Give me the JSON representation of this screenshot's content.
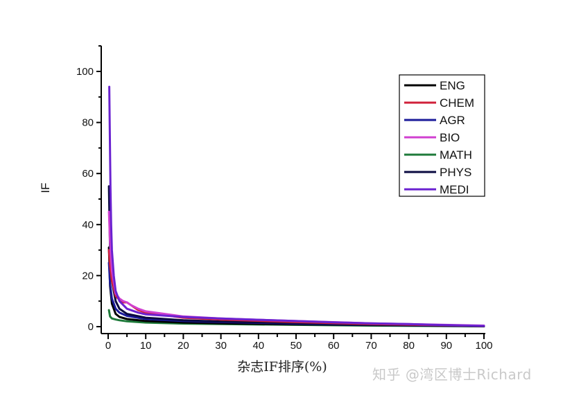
{
  "chart_data": {
    "type": "line",
    "title": "",
    "xlabel": "杂志IF排序(%)",
    "ylabel": "IF",
    "xlim": [
      -2,
      100
    ],
    "ylim": [
      -2,
      110
    ],
    "x_ticks": [
      0,
      10,
      20,
      30,
      40,
      50,
      60,
      70,
      80,
      90,
      100
    ],
    "y_ticks": [
      0,
      20,
      40,
      60,
      80,
      100
    ],
    "grid": false,
    "legend_position": "upper right",
    "series": [
      {
        "name": "ENG",
        "color": "#000000",
        "x": [
          0.2,
          0.5,
          1,
          2,
          3,
          5,
          10,
          20,
          30,
          50,
          70,
          100
        ],
        "y": [
          31,
          16,
          9,
          5,
          3.8,
          3,
          2.2,
          1.6,
          1.3,
          0.9,
          0.6,
          0.2
        ]
      },
      {
        "name": "CHEM",
        "color": "#d0203a",
        "x": [
          0.2,
          0.5,
          1,
          2,
          3,
          4,
          5,
          6,
          8,
          10,
          20,
          30,
          50,
          70,
          100
        ],
        "y": [
          30,
          24,
          18,
          12,
          10.5,
          9.5,
          9.5,
          8.5,
          6.5,
          5.5,
          3.5,
          2.8,
          1.8,
          1.0,
          0.3
        ]
      },
      {
        "name": "AGR",
        "color": "#1a1a9a",
        "x": [
          0.2,
          0.5,
          1,
          2,
          3,
          5,
          10,
          20,
          30,
          50,
          70,
          100
        ],
        "y": [
          25,
          17,
          11,
          7,
          5.5,
          4.2,
          3,
          2.2,
          1.8,
          1.2,
          0.7,
          0.2
        ]
      },
      {
        "name": "BIO",
        "color": "#d040d0",
        "x": [
          0.2,
          0.5,
          1,
          2,
          3,
          4,
          5,
          6,
          8,
          10,
          20,
          30,
          50,
          70,
          100
        ],
        "y": [
          45,
          33,
          22,
          13,
          11,
          10,
          9.5,
          8.5,
          7,
          6,
          4,
          3.2,
          2.2,
          1.3,
          0.4
        ]
      },
      {
        "name": "MATH",
        "color": "#1e7a3a",
        "x": [
          0.2,
          0.5,
          1,
          2,
          3,
          5,
          10,
          20,
          30,
          50,
          70,
          100
        ],
        "y": [
          6.5,
          4,
          3.2,
          2.8,
          2.5,
          2.1,
          1.6,
          1.2,
          1.0,
          0.7,
          0.4,
          0.1
        ]
      },
      {
        "name": "PHYS",
        "color": "#0a0a40",
        "x": [
          0.2,
          0.5,
          1,
          2,
          3,
          5,
          10,
          20,
          30,
          50,
          70,
          100
        ],
        "y": [
          55,
          30,
          18,
          10,
          7,
          5,
          3.5,
          2.5,
          2.0,
          1.4,
          0.8,
          0.2
        ]
      },
      {
        "name": "MEDI",
        "color": "#6a22d0",
        "x": [
          0.3,
          0.4,
          0.6,
          0.8,
          1,
          1.5,
          2,
          3,
          5,
          8,
          10,
          20,
          30,
          40,
          50,
          60,
          70,
          80,
          90,
          100
        ],
        "y": [
          94,
          80,
          55,
          40,
          30,
          20,
          14,
          10,
          7,
          5.5,
          4.8,
          3.8,
          3.2,
          2.7,
          2.2,
          1.7,
          1.3,
          1.0,
          0.6,
          0.3
        ]
      }
    ]
  },
  "watermark": "知乎 @湾区博士Richard"
}
